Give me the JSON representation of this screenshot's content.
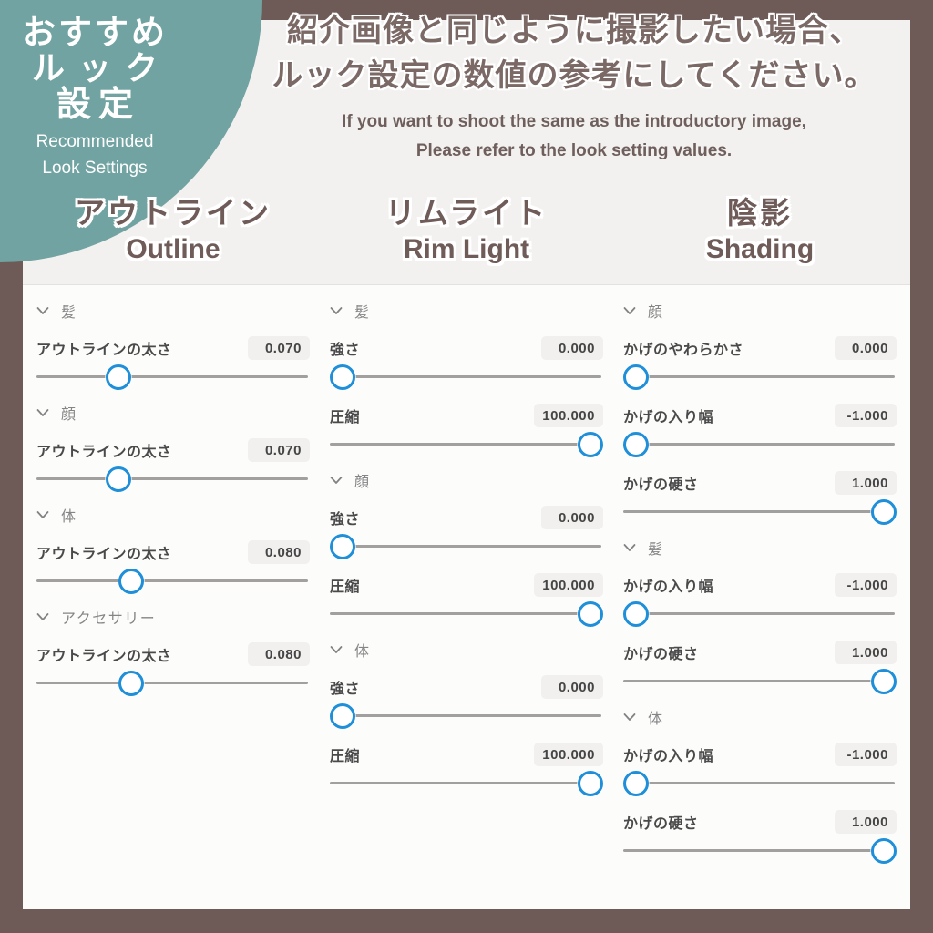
{
  "badge": {
    "title_lines": [
      "おすすめ",
      "ルック",
      "設定"
    ],
    "subtitle_lines": [
      "Recommended",
      "Look Settings"
    ]
  },
  "header": {
    "jp_lines": [
      "紹介画像と同じように撮影したい場合、",
      "ルック設定の数値の参考にしてください。"
    ],
    "en_lines": [
      "If you want to shoot the same as the introductory image,",
      "Please refer to the look setting values."
    ]
  },
  "columns": [
    {
      "title_jp": "アウトライン",
      "title_en": "Outline",
      "sections": [
        {
          "name": "髪",
          "params": [
            {
              "label": "アウトラインの太さ",
              "value": "0.070",
              "percent": 28
            }
          ]
        },
        {
          "name": "顔",
          "params": [
            {
              "label": "アウトラインの太さ",
              "value": "0.070",
              "percent": 28
            }
          ]
        },
        {
          "name": "体",
          "params": [
            {
              "label": "アウトラインの太さ",
              "value": "0.080",
              "percent": 33
            }
          ]
        },
        {
          "name": "アクセサリー",
          "params": [
            {
              "label": "アウトラインの太さ",
              "value": "0.080",
              "percent": 33
            }
          ]
        }
      ]
    },
    {
      "title_jp": "リムライト",
      "title_en": "Rim Light",
      "sections": [
        {
          "name": "髪",
          "params": [
            {
              "label": "強さ",
              "value": "0.000",
              "percent": 0
            },
            {
              "label": "圧縮",
              "value": "100.000",
              "percent": 100
            }
          ]
        },
        {
          "name": "顔",
          "params": [
            {
              "label": "強さ",
              "value": "0.000",
              "percent": 0
            },
            {
              "label": "圧縮",
              "value": "100.000",
              "percent": 100
            }
          ]
        },
        {
          "name": "体",
          "params": [
            {
              "label": "強さ",
              "value": "0.000",
              "percent": 0
            },
            {
              "label": "圧縮",
              "value": "100.000",
              "percent": 100
            }
          ]
        }
      ]
    },
    {
      "title_jp": "陰影",
      "title_en": "Shading",
      "sections": [
        {
          "name": "顔",
          "params": [
            {
              "label": "かげのやわらかさ",
              "value": "0.000",
              "percent": 0
            },
            {
              "label": "かげの入り幅",
              "value": "-1.000",
              "percent": 0
            },
            {
              "label": "かげの硬さ",
              "value": "1.000",
              "percent": 100
            }
          ]
        },
        {
          "name": "髪",
          "params": [
            {
              "label": "かげの入り幅",
              "value": "-1.000",
              "percent": 0
            },
            {
              "label": "かげの硬さ",
              "value": "1.000",
              "percent": 100
            }
          ]
        },
        {
          "name": "体",
          "params": [
            {
              "label": "かげの入り幅",
              "value": "-1.000",
              "percent": 0
            },
            {
              "label": "かげの硬さ",
              "value": "1.000",
              "percent": 100
            }
          ]
        }
      ]
    }
  ],
  "colors": {
    "frame_brown": "#6E5B58",
    "badge_teal": "#70A3A1",
    "canvas_offwhite": "#F2F1EF",
    "panel_white": "#FCFCFB",
    "accent_blue": "#1E8FD8",
    "title_brown": "#6F5B58",
    "header_brown": "#7B6966",
    "value_box_gray": "#F1F0EE",
    "track_gray": "#A2A09E"
  }
}
